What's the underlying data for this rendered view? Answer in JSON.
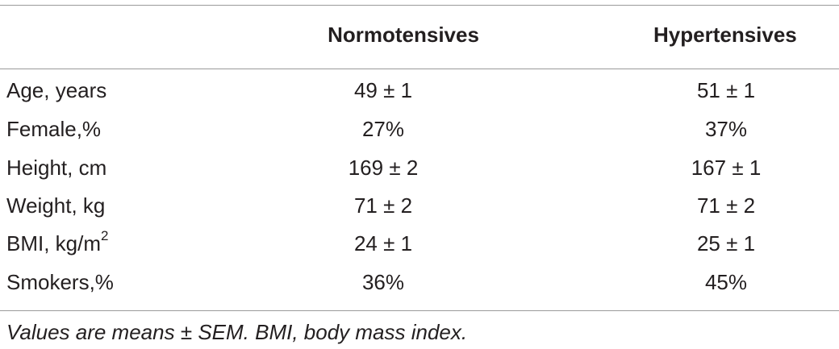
{
  "table": {
    "headers": [
      "",
      "Normotensives",
      "Hypertensives"
    ],
    "rows": [
      {
        "label": "Age, years",
        "label_sup": "",
        "normotensives": "49 ± 1",
        "hypertensives": "51 ± 1"
      },
      {
        "label": "Female,%",
        "label_sup": "",
        "normotensives": "27%",
        "hypertensives": "37%"
      },
      {
        "label": "Height, cm",
        "label_sup": "",
        "normotensives": "169 ± 2",
        "hypertensives": "167 ± 1"
      },
      {
        "label": "Weight, kg",
        "label_sup": "",
        "normotensives": "71 ± 2",
        "hypertensives": "71 ± 2"
      },
      {
        "label": "BMI, kg/m",
        "label_sup": "2",
        "normotensives": "24 ± 1",
        "hypertensives": "25 ± 1"
      },
      {
        "label": "Smokers,%",
        "label_sup": "",
        "normotensives": "36%",
        "hypertensives": "45%"
      }
    ],
    "footnote": "Values are means ± SEM. BMI, body mass index."
  }
}
